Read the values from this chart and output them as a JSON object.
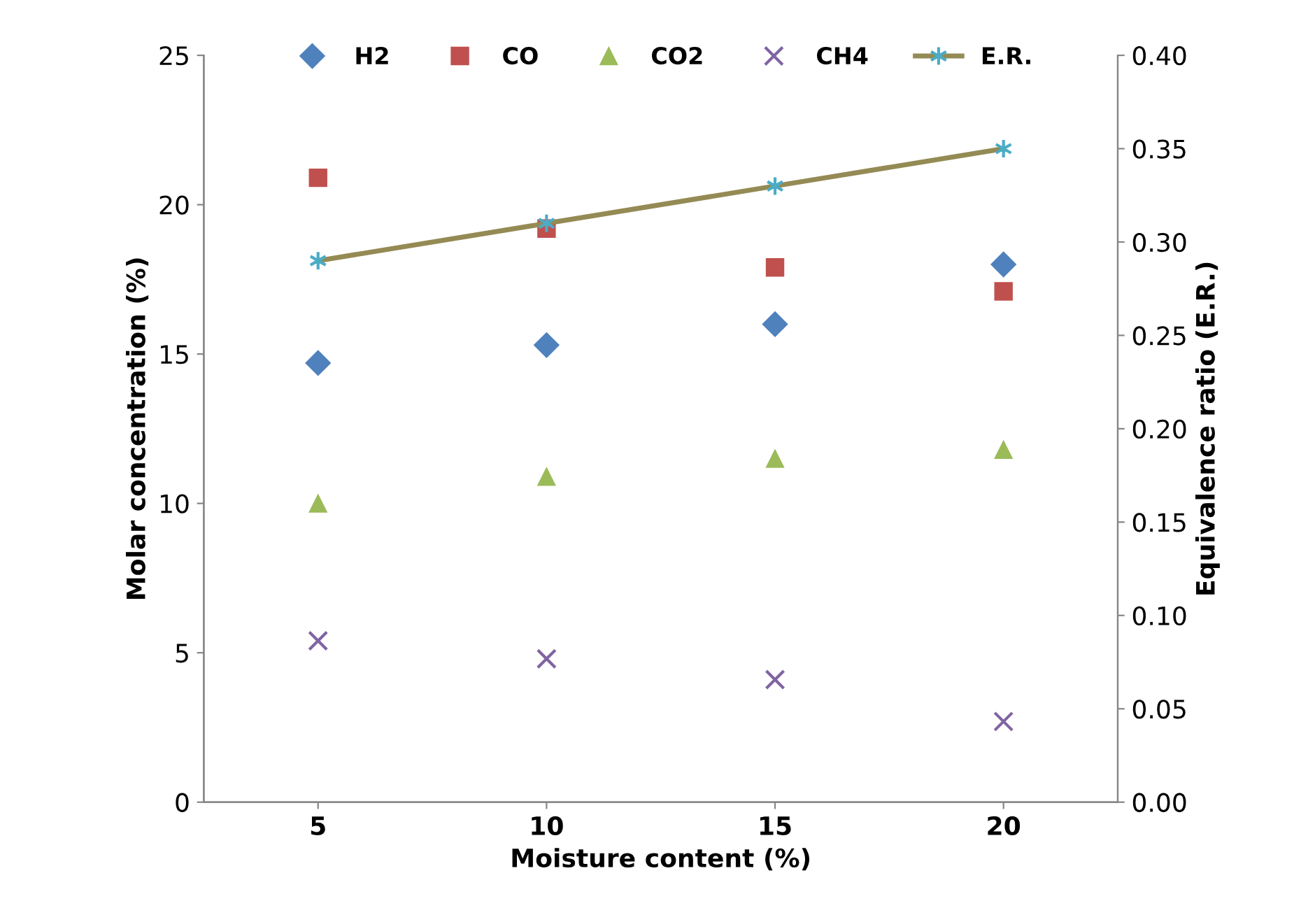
{
  "chart_data": {
    "type": "scatter",
    "xlabel": "Moisture content (%)",
    "ylabel": "Molar concentration (%)",
    "y2label": "Equivalence ratio (E.R.)",
    "categories": [
      "5",
      "10",
      "15",
      "20"
    ],
    "ylim": [
      0,
      25
    ],
    "yticks": [
      0,
      5,
      10,
      15,
      20,
      25
    ],
    "y2lim": [
      0,
      0.4
    ],
    "y2ticks": [
      {
        "value": 0,
        "label": "0.00"
      },
      {
        "value": 0.05,
        "label": "0.05"
      },
      {
        "value": 0.1,
        "label": "0.10"
      },
      {
        "value": 0.15,
        "label": "0.15"
      },
      {
        "value": 0.2,
        "label": "0.20"
      },
      {
        "value": 0.25,
        "label": "0.25"
      },
      {
        "value": 0.3,
        "label": "0.30"
      },
      {
        "value": 0.35,
        "label": "0.35"
      },
      {
        "value": 0.4,
        "label": "0.40"
      }
    ],
    "grid": false,
    "legend": "top",
    "series": [
      {
        "name": "H2",
        "marker": "diamond",
        "color": "#4f81bd",
        "values": [
          14.7,
          15.3,
          16.0,
          18.0
        ]
      },
      {
        "name": "CO",
        "marker": "square",
        "color": "#c0504d",
        "values": [
          20.9,
          19.2,
          17.9,
          17.1
        ]
      },
      {
        "name": "CO2",
        "marker": "triangle",
        "color": "#9bbb59",
        "values": [
          10.0,
          10.9,
          11.5,
          11.8
        ]
      },
      {
        "name": "CH4",
        "marker": "cross",
        "color": "#8064a2",
        "values": [
          5.4,
          4.8,
          4.1,
          2.7
        ]
      },
      {
        "name": "E.R.",
        "type": "line",
        "marker": "cross",
        "axis": "y2",
        "color": "#948a54",
        "values": [
          0.29,
          0.31,
          0.33,
          0.35
        ]
      }
    ]
  }
}
